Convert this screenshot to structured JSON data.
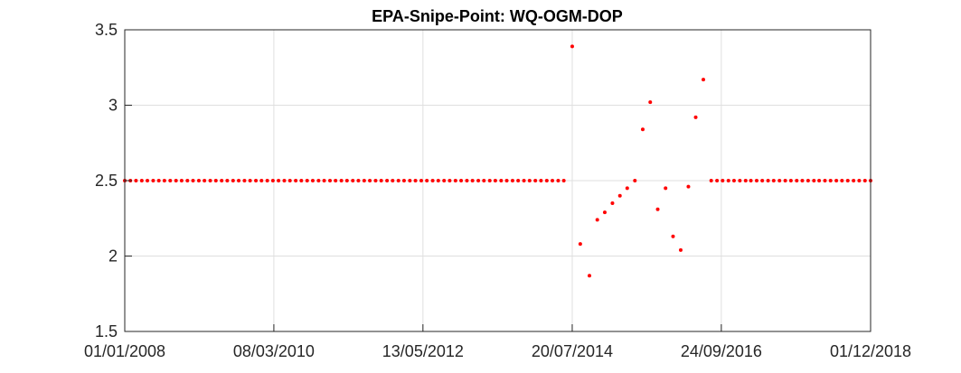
{
  "chart_data": {
    "type": "scatter",
    "title": "EPA-Snipe-Point: WQ-OGM-DOP",
    "xlabel": "",
    "ylabel": "",
    "x_ticks": [
      "01/01/2008",
      "08/03/2010",
      "13/05/2012",
      "20/07/2014",
      "24/09/2016",
      "01/12/2018"
    ],
    "x_tick_dates": [
      "2008-01-01",
      "2010-03-08",
      "2012-05-13",
      "2014-07-20",
      "2016-09-24",
      "2018-12-01"
    ],
    "xlim": [
      "2008-01-01",
      "2018-12-01"
    ],
    "y_ticks": [
      "1.5",
      "2",
      "2.5",
      "3",
      "3.5"
    ],
    "ylim": [
      1.5,
      3.5
    ],
    "grid": true,
    "marker_color": "#ff0000",
    "series": [
      {
        "x": [
          "2008-01-01",
          "2008-01-31",
          "2008-03-01",
          "2008-04-01",
          "2008-05-01",
          "2008-06-01",
          "2008-07-01",
          "2008-07-31",
          "2008-08-31",
          "2008-10-01",
          "2008-10-31",
          "2008-12-01",
          "2008-12-31",
          "2009-01-31",
          "2009-03-02",
          "2009-04-02",
          "2009-05-02",
          "2009-06-02",
          "2009-07-02",
          "2009-08-02",
          "2009-09-01",
          "2009-10-02",
          "2009-11-01",
          "2009-12-02",
          "2010-01-01",
          "2010-02-01",
          "2010-03-03",
          "2010-04-02",
          "2010-05-03",
          "2010-06-02",
          "2010-07-03",
          "2010-08-02",
          "2010-09-02",
          "2010-10-02",
          "2010-11-02",
          "2010-12-02",
          "2011-01-02",
          "2011-02-01",
          "2011-03-04",
          "2011-04-03",
          "2011-05-04",
          "2011-06-03",
          "2011-07-04",
          "2011-08-03",
          "2011-09-03",
          "2011-10-03",
          "2011-11-03",
          "2011-12-03",
          "2012-01-03",
          "2012-02-02",
          "2012-03-04",
          "2012-04-03",
          "2012-05-04",
          "2012-06-03",
          "2012-07-04",
          "2012-08-03",
          "2012-09-03",
          "2012-10-03",
          "2012-11-03",
          "2012-12-03",
          "2013-01-03",
          "2013-02-02",
          "2013-03-05",
          "2013-04-04",
          "2013-05-05",
          "2013-06-04",
          "2013-07-05",
          "2013-08-04",
          "2013-09-04",
          "2013-10-04",
          "2013-11-04",
          "2013-12-04",
          "2014-01-04",
          "2014-02-03",
          "2014-03-06",
          "2014-04-05",
          "2014-05-06",
          "2014-06-05",
          "2014-07-20",
          "2014-09-01",
          "2014-10-20",
          "2014-12-01",
          "2015-01-10",
          "2015-02-20",
          "2015-04-01",
          "2015-05-10",
          "2015-06-20",
          "2015-08-01",
          "2015-09-10",
          "2015-10-20",
          "2015-12-01",
          "2016-01-10",
          "2016-02-20",
          "2016-04-01",
          "2016-05-10",
          "2016-06-20",
          "2016-08-01",
          "2016-09-01",
          "2016-10-01",
          "2016-11-01",
          "2016-12-01",
          "2017-01-01",
          "2017-02-01",
          "2017-03-01",
          "2017-04-01",
          "2017-05-01",
          "2017-06-01",
          "2017-07-01",
          "2017-08-01",
          "2017-09-01",
          "2017-10-01",
          "2017-11-01",
          "2017-12-01",
          "2018-01-01",
          "2018-02-01",
          "2018-03-01",
          "2018-04-01",
          "2018-05-01",
          "2018-06-01",
          "2018-07-01",
          "2018-08-01",
          "2018-09-01",
          "2018-10-01",
          "2018-11-01",
          "2018-12-01"
        ],
        "y": [
          2.5,
          2.5,
          2.5,
          2.5,
          2.5,
          2.5,
          2.5,
          2.5,
          2.5,
          2.5,
          2.5,
          2.5,
          2.5,
          2.5,
          2.5,
          2.5,
          2.5,
          2.5,
          2.5,
          2.5,
          2.5,
          2.5,
          2.5,
          2.5,
          2.5,
          2.5,
          2.5,
          2.5,
          2.5,
          2.5,
          2.5,
          2.5,
          2.5,
          2.5,
          2.5,
          2.5,
          2.5,
          2.5,
          2.5,
          2.5,
          2.5,
          2.5,
          2.5,
          2.5,
          2.5,
          2.5,
          2.5,
          2.5,
          2.5,
          2.5,
          2.5,
          2.5,
          2.5,
          2.5,
          2.5,
          2.5,
          2.5,
          2.5,
          2.5,
          2.5,
          2.5,
          2.5,
          2.5,
          2.5,
          2.5,
          2.5,
          2.5,
          2.5,
          2.5,
          2.5,
          2.5,
          2.5,
          2.5,
          2.5,
          2.5,
          2.5,
          2.5,
          2.5,
          3.39,
          2.08,
          1.87,
          2.24,
          2.29,
          2.35,
          2.4,
          2.45,
          2.5,
          2.84,
          3.02,
          2.31,
          2.45,
          2.13,
          2.04,
          2.46,
          2.92,
          3.17,
          2.5,
          2.5,
          2.5,
          2.5,
          2.5,
          2.5,
          2.5,
          2.5,
          2.5,
          2.5,
          2.5,
          2.5,
          2.5,
          2.5,
          2.5,
          2.5,
          2.5,
          2.5,
          2.5,
          2.5,
          2.5,
          2.5,
          2.5,
          2.5,
          2.5,
          2.5,
          2.5,
          2.5,
          2.5
        ]
      }
    ]
  }
}
